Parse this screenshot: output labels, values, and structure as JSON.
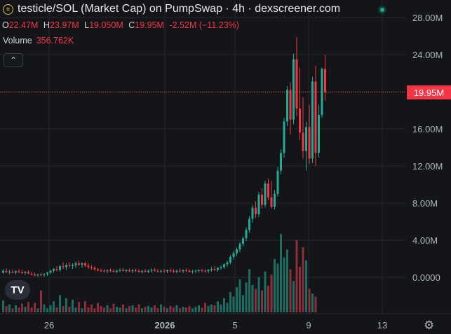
{
  "header": {
    "title": "testicle/SOL (Market Cap) on PumpSwap · 4h · dexscreener.com",
    "ohlc": [
      {
        "key": "O",
        "value": "22.47M"
      },
      {
        "key": "H",
        "value": "23.97M"
      },
      {
        "key": "L",
        "value": "19.050M"
      },
      {
        "key": "C",
        "value": "19.95M"
      }
    ],
    "change": "-2.52M (−11.23%)",
    "volume_label": "Volume",
    "volume_value": "356.762K"
  },
  "price_tag": "19.95M",
  "logo_text": "TV",
  "colors": {
    "up": "#22ab94",
    "down": "#f23645",
    "up_vol": "#1d6e62",
    "down_vol": "#8c2f3a",
    "background": "#141518"
  },
  "chart_data": {
    "type": "candlestick",
    "y_axis": {
      "ticks": [
        "28.00M",
        "24.00M",
        "20.00M",
        "16.00M",
        "12.00M",
        "8.00M",
        "4.00M",
        "0.0000"
      ],
      "values": [
        28,
        24,
        20,
        16,
        12,
        8,
        4,
        0
      ],
      "unit": "M"
    },
    "x_axis": {
      "ticks": [
        "26",
        "2026",
        "5",
        "9",
        "13"
      ]
    },
    "last_price": 19.95,
    "candles": [
      {
        "o": 0.5,
        "h": 0.9,
        "l": 0.35,
        "c": 0.7
      },
      {
        "o": 0.7,
        "h": 0.95,
        "l": 0.45,
        "c": 0.55
      },
      {
        "o": 0.55,
        "h": 0.8,
        "l": 0.3,
        "c": 0.6
      },
      {
        "o": 0.6,
        "h": 0.85,
        "l": 0.4,
        "c": 0.5
      },
      {
        "o": 0.5,
        "h": 0.75,
        "l": 0.3,
        "c": 0.65
      },
      {
        "o": 0.65,
        "h": 0.9,
        "l": 0.45,
        "c": 0.55
      },
      {
        "o": 0.55,
        "h": 0.8,
        "l": 0.35,
        "c": 0.45
      },
      {
        "o": 0.45,
        "h": 0.7,
        "l": 0.25,
        "c": 0.55
      },
      {
        "o": 0.55,
        "h": 0.75,
        "l": 0.35,
        "c": 0.4
      },
      {
        "o": 0.4,
        "h": 0.6,
        "l": 0.2,
        "c": 0.3
      },
      {
        "o": 0.3,
        "h": 0.5,
        "l": 0.1,
        "c": 0.2
      },
      {
        "o": 0.2,
        "h": 0.4,
        "l": 0.05,
        "c": 0.3
      },
      {
        "o": 0.3,
        "h": 0.5,
        "l": 0.1,
        "c": 0.25
      },
      {
        "o": 0.25,
        "h": 0.45,
        "l": 0.05,
        "c": 0.35
      },
      {
        "o": 0.35,
        "h": 0.6,
        "l": 0.15,
        "c": 0.5
      },
      {
        "o": 0.5,
        "h": 0.8,
        "l": 0.3,
        "c": 0.7
      },
      {
        "o": 0.7,
        "h": 1.0,
        "l": 0.5,
        "c": 0.9
      },
      {
        "o": 0.9,
        "h": 1.2,
        "l": 0.6,
        "c": 0.8
      },
      {
        "o": 0.8,
        "h": 1.3,
        "l": 0.6,
        "c": 1.2
      },
      {
        "o": 1.2,
        "h": 1.6,
        "l": 0.9,
        "c": 1.1
      },
      {
        "o": 1.1,
        "h": 1.5,
        "l": 0.8,
        "c": 1.3
      },
      {
        "o": 1.3,
        "h": 1.6,
        "l": 1.0,
        "c": 1.2
      },
      {
        "o": 1.2,
        "h": 1.5,
        "l": 0.9,
        "c": 1.3
      },
      {
        "o": 1.3,
        "h": 1.7,
        "l": 1.0,
        "c": 1.5
      },
      {
        "o": 1.5,
        "h": 1.8,
        "l": 1.2,
        "c": 1.35
      },
      {
        "o": 1.35,
        "h": 1.6,
        "l": 1.0,
        "c": 1.5
      },
      {
        "o": 1.5,
        "h": 1.7,
        "l": 1.1,
        "c": 1.25
      },
      {
        "o": 1.25,
        "h": 1.5,
        "l": 0.9,
        "c": 1.1
      },
      {
        "o": 1.1,
        "h": 1.3,
        "l": 0.8,
        "c": 1.0
      },
      {
        "o": 1.0,
        "h": 1.2,
        "l": 0.7,
        "c": 0.85
      },
      {
        "o": 0.85,
        "h": 1.05,
        "l": 0.6,
        "c": 0.75
      },
      {
        "o": 0.75,
        "h": 0.95,
        "l": 0.55,
        "c": 0.7
      },
      {
        "o": 0.7,
        "h": 0.9,
        "l": 0.5,
        "c": 0.65
      },
      {
        "o": 0.65,
        "h": 0.85,
        "l": 0.45,
        "c": 0.75
      },
      {
        "o": 0.75,
        "h": 0.95,
        "l": 0.55,
        "c": 0.7
      },
      {
        "o": 0.7,
        "h": 0.9,
        "l": 0.5,
        "c": 0.6
      },
      {
        "o": 0.6,
        "h": 0.85,
        "l": 0.45,
        "c": 0.7
      },
      {
        "o": 0.7,
        "h": 0.95,
        "l": 0.55,
        "c": 0.8
      },
      {
        "o": 0.8,
        "h": 1.0,
        "l": 0.6,
        "c": 0.7
      },
      {
        "o": 0.7,
        "h": 0.9,
        "l": 0.5,
        "c": 0.75
      },
      {
        "o": 0.75,
        "h": 0.95,
        "l": 0.55,
        "c": 0.65
      },
      {
        "o": 0.65,
        "h": 0.9,
        "l": 0.45,
        "c": 0.75
      },
      {
        "o": 0.75,
        "h": 0.95,
        "l": 0.55,
        "c": 0.7
      },
      {
        "o": 0.7,
        "h": 0.9,
        "l": 0.5,
        "c": 0.6
      },
      {
        "o": 0.6,
        "h": 0.8,
        "l": 0.4,
        "c": 0.7
      },
      {
        "o": 0.7,
        "h": 0.9,
        "l": 0.5,
        "c": 0.6
      },
      {
        "o": 0.6,
        "h": 0.85,
        "l": 0.45,
        "c": 0.7
      },
      {
        "o": 0.7,
        "h": 0.95,
        "l": 0.5,
        "c": 0.8
      },
      {
        "o": 0.8,
        "h": 1.0,
        "l": 0.6,
        "c": 0.7
      },
      {
        "o": 0.7,
        "h": 0.9,
        "l": 0.5,
        "c": 0.65
      },
      {
        "o": 0.65,
        "h": 0.85,
        "l": 0.45,
        "c": 0.7
      },
      {
        "o": 0.7,
        "h": 0.9,
        "l": 0.5,
        "c": 0.65
      },
      {
        "o": 0.65,
        "h": 0.85,
        "l": 0.45,
        "c": 0.75
      },
      {
        "o": 0.75,
        "h": 0.95,
        "l": 0.55,
        "c": 0.7
      },
      {
        "o": 0.7,
        "h": 0.9,
        "l": 0.45,
        "c": 0.6
      },
      {
        "o": 0.6,
        "h": 0.85,
        "l": 0.4,
        "c": 0.7
      },
      {
        "o": 0.7,
        "h": 0.95,
        "l": 0.5,
        "c": 0.65
      },
      {
        "o": 0.65,
        "h": 0.85,
        "l": 0.45,
        "c": 0.75
      },
      {
        "o": 0.75,
        "h": 0.95,
        "l": 0.55,
        "c": 0.7
      },
      {
        "o": 0.7,
        "h": 0.9,
        "l": 0.5,
        "c": 0.6
      },
      {
        "o": 0.6,
        "h": 0.8,
        "l": 0.4,
        "c": 0.65
      },
      {
        "o": 0.65,
        "h": 0.85,
        "l": 0.45,
        "c": 0.7
      },
      {
        "o": 0.7,
        "h": 0.9,
        "l": 0.5,
        "c": 0.75
      },
      {
        "o": 0.75,
        "h": 0.95,
        "l": 0.55,
        "c": 0.7
      },
      {
        "o": 0.7,
        "h": 0.9,
        "l": 0.5,
        "c": 0.65
      },
      {
        "o": 0.65,
        "h": 0.9,
        "l": 0.45,
        "c": 0.8
      },
      {
        "o": 0.8,
        "h": 1.1,
        "l": 0.6,
        "c": 0.9
      },
      {
        "o": 0.9,
        "h": 1.2,
        "l": 0.7,
        "c": 0.8
      },
      {
        "o": 0.8,
        "h": 1.1,
        "l": 0.6,
        "c": 1.0
      },
      {
        "o": 1.0,
        "h": 1.3,
        "l": 0.8,
        "c": 1.1
      },
      {
        "o": 1.1,
        "h": 1.5,
        "l": 0.9,
        "c": 1.4
      },
      {
        "o": 1.4,
        "h": 1.8,
        "l": 1.1,
        "c": 1.6
      },
      {
        "o": 1.6,
        "h": 2.4,
        "l": 1.4,
        "c": 2.2
      },
      {
        "o": 2.2,
        "h": 2.8,
        "l": 1.9,
        "c": 2.6
      },
      {
        "o": 2.6,
        "h": 3.2,
        "l": 2.3,
        "c": 3.0
      },
      {
        "o": 3.0,
        "h": 3.8,
        "l": 2.7,
        "c": 3.6
      },
      {
        "o": 3.6,
        "h": 4.4,
        "l": 3.3,
        "c": 4.2
      },
      {
        "o": 4.2,
        "h": 5.4,
        "l": 3.9,
        "c": 5.1
      },
      {
        "o": 5.1,
        "h": 6.6,
        "l": 4.8,
        "c": 6.3
      },
      {
        "o": 6.3,
        "h": 7.8,
        "l": 5.9,
        "c": 7.5
      },
      {
        "o": 7.5,
        "h": 8.2,
        "l": 6.4,
        "c": 6.8
      },
      {
        "o": 6.8,
        "h": 9.2,
        "l": 6.5,
        "c": 8.9
      },
      {
        "o": 8.9,
        "h": 9.6,
        "l": 7.4,
        "c": 7.8
      },
      {
        "o": 7.8,
        "h": 10.4,
        "l": 7.5,
        "c": 10.1
      },
      {
        "o": 10.1,
        "h": 10.6,
        "l": 8.3,
        "c": 8.6
      },
      {
        "o": 8.6,
        "h": 10.4,
        "l": 7.4,
        "c": 7.6
      },
      {
        "o": 7.6,
        "h": 9.4,
        "l": 7.3,
        "c": 9.0
      },
      {
        "o": 9.0,
        "h": 11.9,
        "l": 8.7,
        "c": 11.5
      },
      {
        "o": 11.5,
        "h": 13.8,
        "l": 11.1,
        "c": 13.4
      },
      {
        "o": 13.4,
        "h": 17.2,
        "l": 12.9,
        "c": 16.8
      },
      {
        "o": 16.8,
        "h": 20.6,
        "l": 16.3,
        "c": 20.2
      },
      {
        "o": 20.2,
        "h": 21.0,
        "l": 15.4,
        "c": 17.0
      },
      {
        "o": 17.0,
        "h": 24.1,
        "l": 16.5,
        "c": 23.5
      },
      {
        "o": 23.5,
        "h": 25.9,
        "l": 17.4,
        "c": 18.2
      },
      {
        "o": 18.2,
        "h": 22.6,
        "l": 14.8,
        "c": 15.6
      },
      {
        "o": 15.6,
        "h": 19.4,
        "l": 12.8,
        "c": 13.6
      },
      {
        "o": 13.6,
        "h": 16.8,
        "l": 11.5,
        "c": 16.2
      },
      {
        "o": 16.2,
        "h": 18.6,
        "l": 12.2,
        "c": 12.8
      },
      {
        "o": 12.8,
        "h": 21.6,
        "l": 12.3,
        "c": 21.1
      },
      {
        "o": 21.1,
        "h": 22.8,
        "l": 12.0,
        "c": 13.4
      },
      {
        "o": 13.4,
        "h": 18.6,
        "l": 12.9,
        "c": 17.5
      },
      {
        "o": 17.5,
        "h": 22.6,
        "l": 17.2,
        "c": 22.47
      },
      {
        "o": 22.47,
        "h": 23.97,
        "l": 19.05,
        "c": 19.95
      }
    ],
    "volumes": [
      0.15,
      0.08,
      0.1,
      0.05,
      0.09,
      0.06,
      0.11,
      0.07,
      0.13,
      0.06,
      0.12,
      0.05,
      0.28,
      0.1,
      0.05,
      0.09,
      0.14,
      0.06,
      0.22,
      0.08,
      0.18,
      0.07,
      0.16,
      0.06,
      0.13,
      0.05,
      0.14,
      0.06,
      0.1,
      0.05,
      0.12,
      0.08,
      0.06,
      0.09,
      0.05,
      0.11,
      0.07,
      0.06,
      0.1,
      0.05,
      0.08,
      0.09,
      0.06,
      0.1,
      0.05,
      0.07,
      0.08,
      0.06,
      0.09,
      0.05,
      0.1,
      0.07,
      0.05,
      0.08,
      0.06,
      0.09,
      0.05,
      0.07,
      0.06,
      0.08,
      0.05,
      0.07,
      0.09,
      0.06,
      0.12,
      0.08,
      0.1,
      0.09,
      0.14,
      0.1,
      0.18,
      0.12,
      0.26,
      0.2,
      0.32,
      0.42,
      0.22,
      0.38,
      0.55,
      0.35,
      0.3,
      0.45,
      0.28,
      0.52,
      0.34,
      0.48,
      0.68,
      0.62,
      1.0,
      0.7,
      0.8,
      0.55,
      0.4,
      0.92,
      0.58,
      0.83,
      0.66,
      0.3,
      0.24,
      0.2
    ]
  }
}
